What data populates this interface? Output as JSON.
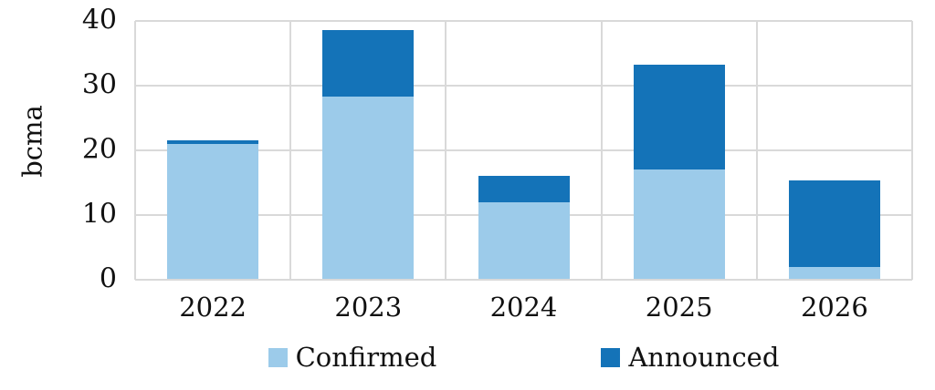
{
  "chart_data": {
    "type": "bar",
    "stacked": true,
    "title": "",
    "xlabel": "",
    "ylabel": "bcma",
    "categories": [
      "2022",
      "2023",
      "2024",
      "2025",
      "2026"
    ],
    "series": [
      {
        "name": "Confirmed",
        "color": "#9ccbea",
        "values": [
          21.0,
          28.3,
          12.0,
          17.0,
          2.0
        ]
      },
      {
        "name": "Announced",
        "color": "#1473b8",
        "values": [
          0.5,
          10.3,
          4.0,
          16.2,
          13.3
        ]
      }
    ],
    "totals": [
      21.5,
      38.6,
      16.0,
      33.2,
      15.3
    ],
    "yticks": [
      0,
      10,
      20,
      30,
      40
    ],
    "ylim": [
      0,
      40
    ],
    "grid": true,
    "gridline_color": "#d9d9d9",
    "legend_position": "bottom"
  }
}
